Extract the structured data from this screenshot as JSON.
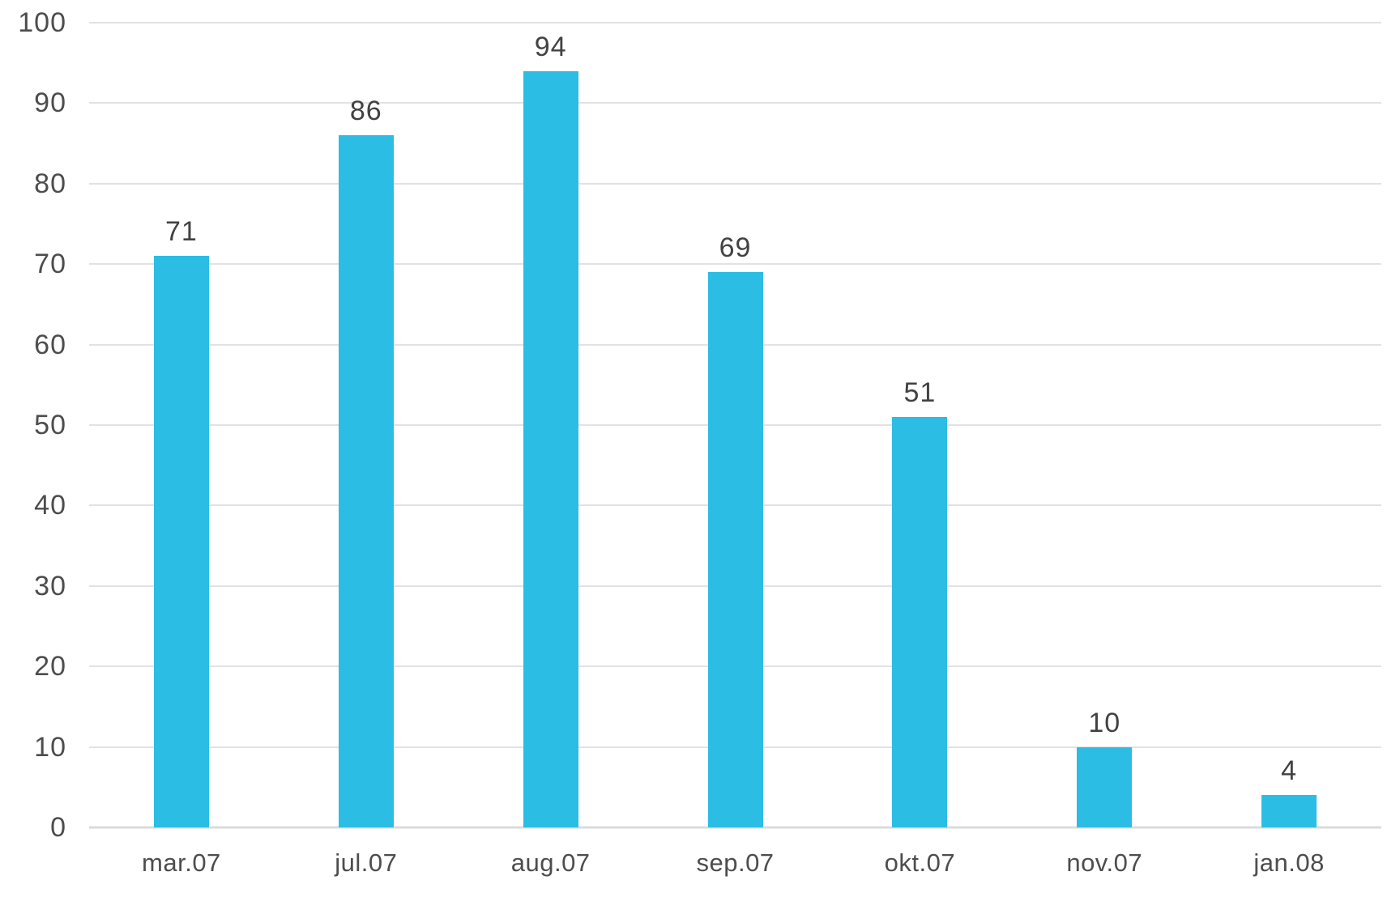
{
  "chart_data": {
    "type": "bar",
    "title": "",
    "xlabel": "",
    "ylabel": "",
    "categories": [
      "mar.07",
      "jul.07",
      "aug.07",
      "sep.07",
      "okt.07",
      "nov.07",
      "jan.08"
    ],
    "values": [
      71,
      86,
      94,
      69,
      51,
      10,
      4
    ],
    "data_labels_shown": true,
    "ylim": [
      0,
      100
    ],
    "yticks": [
      0,
      10,
      20,
      30,
      40,
      50,
      60,
      70,
      80,
      90,
      100
    ],
    "grid": true,
    "legend_position": "none",
    "colors": {
      "bar": "#2BBDE4",
      "gridline": "#E2E2E2",
      "axis_line": "#DBDBDB",
      "tick_label_text": "#4D4D4D",
      "data_label_text": "#424242",
      "background": "#FFFFFF"
    }
  }
}
